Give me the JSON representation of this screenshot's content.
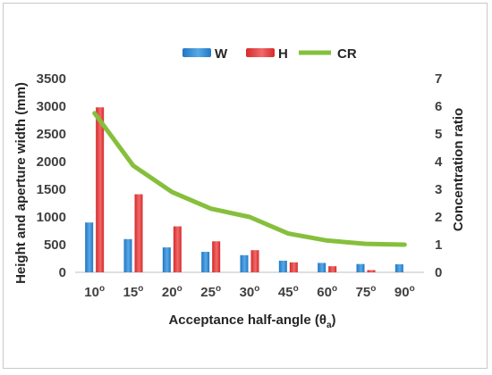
{
  "chart_data": {
    "type": "bar",
    "categories": [
      "10",
      "15",
      "20",
      "25",
      "30",
      "45",
      "60",
      "75",
      "90"
    ],
    "category_suffix": "o",
    "series": [
      {
        "name": "W",
        "kind": "bar",
        "axis": "left",
        "color": "#1f77c4",
        "values": [
          900,
          600,
          450,
          370,
          310,
          210,
          170,
          150,
          145
        ]
      },
      {
        "name": "H",
        "kind": "bar",
        "axis": "left",
        "color": "#d62a2a",
        "values": [
          2980,
          1410,
          830,
          560,
          400,
          180,
          110,
          40,
          0
        ]
      },
      {
        "name": "CR",
        "kind": "line",
        "axis": "right",
        "color": "#86bf3c",
        "values": [
          5.75,
          3.85,
          2.9,
          2.3,
          2.0,
          1.4,
          1.15,
          1.03,
          1.0
        ]
      }
    ],
    "y_left": {
      "label": "Height and aperture width (mm)",
      "ylim": [
        0,
        3500
      ],
      "ticks": [
        0,
        500,
        1000,
        1500,
        2000,
        2500,
        3000,
        3500
      ]
    },
    "y_right": {
      "label": "Concentration ratio",
      "ylim": [
        0,
        7
      ],
      "ticks": [
        0,
        1,
        2,
        3,
        4,
        5,
        6,
        7
      ]
    },
    "xlabel_main": "Acceptance half-angle (θ",
    "xlabel_sub": "a",
    "xlabel_end": ")",
    "legend_position": "top-center",
    "grid": false
  }
}
